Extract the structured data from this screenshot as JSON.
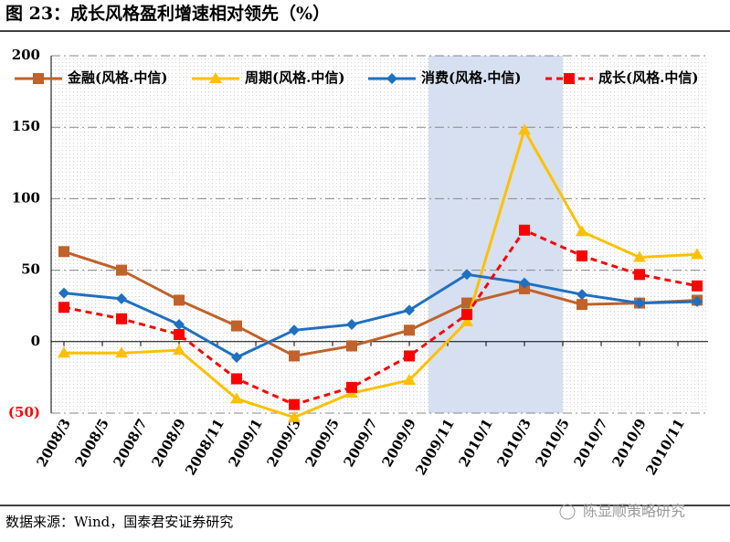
{
  "chart_data": {
    "type": "line",
    "title": "图 23：成长风格盈利增速相对领先（%）",
    "source": "数据来源：Wind，国泰君安证券研究",
    "watermark": "陈显顺策略研究",
    "x": [
      "2008/3",
      "2008/6",
      "2008/9",
      "2008/12",
      "2009/3",
      "2009/6",
      "2009/9",
      "2009/12",
      "2010/3",
      "2010/6",
      "2010/9",
      "2010/12"
    ],
    "xticks": [
      "2008/3",
      "2008/5",
      "2008/7",
      "2008/9",
      "2008/11",
      "2009/1",
      "2009/3",
      "2009/5",
      "2009/7",
      "2009/9",
      "2009/11",
      "2010/1",
      "2010/3",
      "2010/5",
      "2010/7",
      "2010/9",
      "2010/11"
    ],
    "shade": [
      "2009/10",
      "2010/5"
    ],
    "ylim": [
      -50,
      200
    ],
    "yticks": [
      {
        "value": -50,
        "label": "(50)"
      },
      0,
      50,
      100,
      150,
      200
    ],
    "grid": true,
    "legend": "top",
    "series": [
      {
        "name": "金融(风格.中信)",
        "color": "#c0622b",
        "marker": "square",
        "dash": false,
        "values": [
          63,
          50,
          29,
          11,
          -10,
          -3,
          8,
          27,
          37,
          26,
          27,
          29
        ]
      },
      {
        "name": "周期(风格.中信)",
        "color": "#ffc000",
        "marker": "triangle",
        "dash": false,
        "values": [
          -8,
          -8,
          -6,
          -40,
          -53,
          -36,
          -27,
          14,
          148,
          77,
          59,
          61
        ]
      },
      {
        "name": "消费(风格.中信)",
        "color": "#1f70c1",
        "marker": "diamond",
        "dash": false,
        "values": [
          34,
          30,
          12,
          -11,
          8,
          12,
          22,
          47,
          41,
          33,
          27,
          28
        ]
      },
      {
        "name": "成长(风格.中信)",
        "color": "#ff0000",
        "marker": "square",
        "dash": true,
        "values": [
          24,
          16,
          5,
          -26,
          -44,
          -32,
          -10,
          19,
          78,
          60,
          47,
          39
        ]
      }
    ]
  }
}
